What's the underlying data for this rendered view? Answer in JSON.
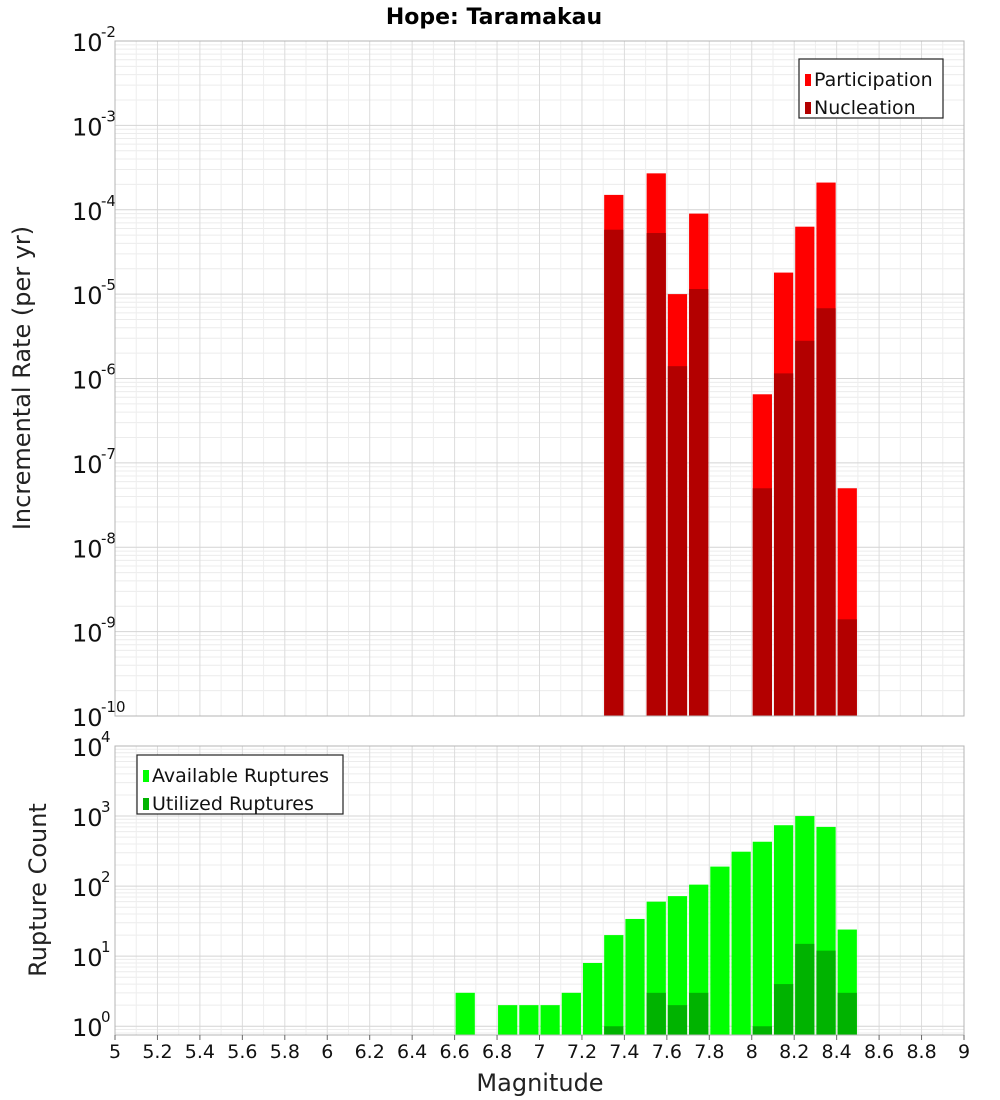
{
  "chart_data": [
    {
      "type": "bar",
      "title": "Hope: Taramakau",
      "xlabel": "",
      "ylabel": "Incremental Rate (per yr)",
      "scale": "log",
      "xlim": [
        5,
        9
      ],
      "ylim": [
        1e-10,
        0.01
      ],
      "legend": {
        "position": "top-right",
        "entries": [
          "Participation",
          "Nucleation"
        ]
      },
      "grid": true,
      "bar_width": 0.1,
      "colors": {
        "Participation": "#ff0000",
        "Nucleation": "#b30000"
      },
      "series": [
        {
          "name": "Participation",
          "x": [
            7.35,
            7.55,
            7.65,
            7.75,
            8.05,
            8.15,
            8.25,
            8.35,
            8.45
          ],
          "values": [
            0.00015,
            0.00027,
            1e-05,
            9e-05,
            6.5e-07,
            1.8e-05,
            6.3e-05,
            0.00021,
            5e-08
          ]
        },
        {
          "name": "Nucleation",
          "x": [
            7.35,
            7.55,
            7.65,
            7.75,
            8.05,
            8.15,
            8.25,
            8.35,
            8.45
          ],
          "values": [
            5.8e-05,
            5.3e-05,
            1.4e-06,
            1.15e-05,
            5e-08,
            1.15e-06,
            2.8e-06,
            6.8e-06,
            1.4e-09
          ]
        }
      ]
    },
    {
      "type": "bar",
      "title": "",
      "xlabel": "Magnitude",
      "ylabel": "Rupture Count",
      "scale": "log",
      "xlim": [
        5,
        9
      ],
      "ylim": [
        0.75,
        10000.0
      ],
      "legend": {
        "position": "top-left",
        "entries": [
          "Available Ruptures",
          "Utilized Ruptures"
        ]
      },
      "grid": true,
      "bar_width": 0.1,
      "colors": {
        "Available Ruptures": "#00ff00",
        "Utilized Ruptures": "#00b300"
      },
      "x_ticks": [
        "5",
        "5.2",
        "5.4",
        "5.6",
        "5.8",
        "6",
        "6.2",
        "6.4",
        "6.6",
        "6.8",
        "7",
        "7.2",
        "7.4",
        "7.6",
        "7.8",
        "8",
        "8.2",
        "8.4",
        "8.6",
        "8.8",
        "9"
      ],
      "series": [
        {
          "name": "Available Ruptures",
          "x": [
            6.65,
            6.85,
            6.95,
            7.05,
            7.15,
            7.25,
            7.35,
            7.45,
            7.55,
            7.65,
            7.75,
            7.85,
            7.95,
            8.05,
            8.15,
            8.25,
            8.35,
            8.45
          ],
          "values": [
            3,
            2,
            2,
            2,
            3,
            8,
            20,
            34,
            60,
            72,
            105,
            190,
            310,
            430,
            740,
            1000,
            700,
            24
          ]
        },
        {
          "name": "Utilized Ruptures",
          "x": [
            7.35,
            7.55,
            7.65,
            7.75,
            8.05,
            8.15,
            8.25,
            8.35,
            8.45
          ],
          "values": [
            1,
            3,
            2,
            3,
            1,
            4,
            15,
            12,
            3
          ]
        }
      ]
    }
  ],
  "y_tick_base": "10"
}
